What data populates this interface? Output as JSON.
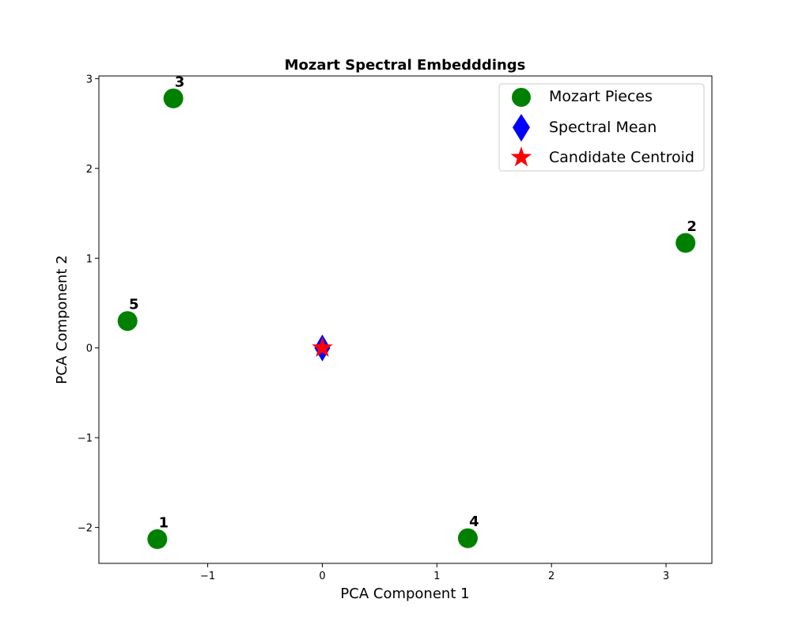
{
  "chart_data": {
    "type": "scatter",
    "title": "Mozart Spectral Embedddings",
    "xlabel": "PCA Component 1",
    "ylabel": "PCA Component 2",
    "xlim": [
      -1.95,
      3.4
    ],
    "ylim": [
      -2.4,
      3.03
    ],
    "xticks": [
      -1,
      0,
      1,
      2,
      3
    ],
    "yticks": [
      -2,
      -1,
      0,
      1,
      2,
      3
    ],
    "xtick_labels": [
      "−1",
      "0",
      "1",
      "2",
      "3"
    ],
    "ytick_labels": [
      "−2",
      "−1",
      "0",
      "1",
      "2",
      "3"
    ],
    "grid": false,
    "legend_position": "top-right",
    "series": [
      {
        "name": "Mozart Pieces",
        "marker": "circle",
        "color": "#008000",
        "points": [
          {
            "label": "1",
            "x": -1.44,
            "y": -2.13
          },
          {
            "label": "2",
            "x": 3.17,
            "y": 1.17
          },
          {
            "label": "3",
            "x": -1.3,
            "y": 2.78
          },
          {
            "label": "4",
            "x": 1.27,
            "y": -2.12
          },
          {
            "label": "5",
            "x": -1.7,
            "y": 0.3
          }
        ]
      },
      {
        "name": "Spectral Mean",
        "marker": "diamond",
        "color": "#0000ff",
        "points": [
          {
            "x": 0,
            "y": 0
          }
        ]
      },
      {
        "name": "Candidate Centroid",
        "marker": "star",
        "color": "#ff0000",
        "points": [
          {
            "x": 0,
            "y": 0
          }
        ]
      }
    ]
  }
}
